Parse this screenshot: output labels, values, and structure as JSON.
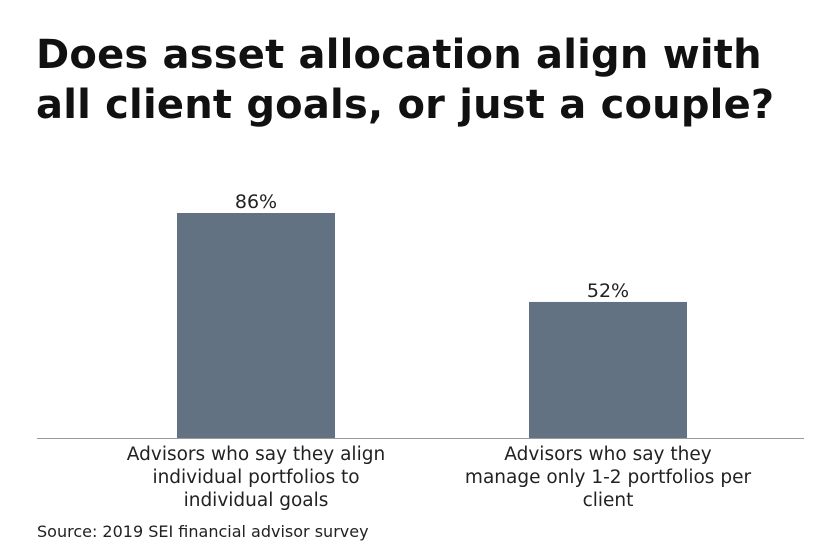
{
  "title_lines": [
    "Does asset allocation align with",
    "all client goals, or just a couple?"
  ],
  "source": "Source: 2019 SEI financial advisor survey",
  "colors": {
    "bar": "#637282",
    "axis": "#9a9a9a",
    "text": "#222222"
  },
  "chart_data": {
    "type": "bar",
    "categories": [
      "Advisors who say they align individual portfolios to individual goals",
      "Advisors who say they manage only 1-2 portfolios per client"
    ],
    "category_label_lines": [
      [
        "Advisors who say they align",
        "individual portfolios to",
        "individual goals"
      ],
      [
        "Advisors who say they",
        "manage only 1-2 portfolios per",
        "client"
      ]
    ],
    "values": [
      86,
      52
    ],
    "data_labels": [
      "86%",
      "52%"
    ],
    "title": "Does asset allocation align with all client goals, or just a couple?",
    "xlabel": "",
    "ylabel": "",
    "ylim": [
      0,
      86
    ],
    "grid": false,
    "legend": "none"
  }
}
